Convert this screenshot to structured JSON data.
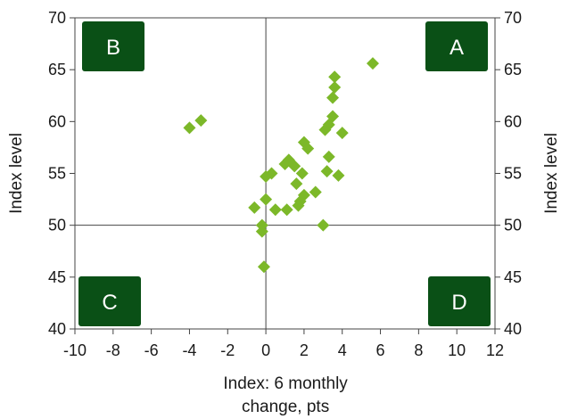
{
  "chart_data": {
    "type": "scatter",
    "title": "",
    "xlabel_lines": [
      "Index: 6 monthly",
      "change, pts"
    ],
    "ylabel_left": "Index level",
    "ylabel_right": "Index level",
    "xlim": [
      -10,
      12
    ],
    "ylim": [
      40,
      70
    ],
    "x_ticks": [
      "-10",
      "-8",
      "-6",
      "-4",
      "-2",
      "0",
      "2",
      "4",
      "6",
      "8",
      "10",
      "12"
    ],
    "y_ticks": [
      "40",
      "45",
      "50",
      "55",
      "60",
      "65",
      "70"
    ],
    "reference_lines": {
      "x": 0,
      "y": 50
    },
    "quadrants": [
      {
        "label": "B",
        "position": "top-left"
      },
      {
        "label": "A",
        "position": "top-right"
      },
      {
        "label": "C",
        "position": "bottom-left"
      },
      {
        "label": "D",
        "position": "bottom-right"
      }
    ],
    "grid": false,
    "marker": "diamond",
    "colors": {
      "marker": "#7cb829",
      "quadrant_box": "#0a5016",
      "axis": "#444444"
    },
    "points": [
      {
        "x": 5.6,
        "y": 65.6
      },
      {
        "x": 3.6,
        "y": 64.3
      },
      {
        "x": 3.6,
        "y": 63.3
      },
      {
        "x": 3.5,
        "y": 62.3
      },
      {
        "x": -3.4,
        "y": 60.1
      },
      {
        "x": -4.0,
        "y": 59.4
      },
      {
        "x": 3.5,
        "y": 60.5
      },
      {
        "x": 3.3,
        "y": 59.7
      },
      {
        "x": 3.1,
        "y": 59.2
      },
      {
        "x": 4.0,
        "y": 58.9
      },
      {
        "x": 2.0,
        "y": 58.0
      },
      {
        "x": 2.2,
        "y": 57.4
      },
      {
        "x": 3.3,
        "y": 56.6
      },
      {
        "x": 1.2,
        "y": 56.3
      },
      {
        "x": 1.0,
        "y": 55.9
      },
      {
        "x": 1.5,
        "y": 55.7
      },
      {
        "x": 1.9,
        "y": 55.0
      },
      {
        "x": 3.2,
        "y": 55.2
      },
      {
        "x": 3.8,
        "y": 54.8
      },
      {
        "x": 0.3,
        "y": 55.0
      },
      {
        "x": 0.0,
        "y": 54.7
      },
      {
        "x": 1.6,
        "y": 54.0
      },
      {
        "x": 2.6,
        "y": 53.2
      },
      {
        "x": 2.0,
        "y": 52.9
      },
      {
        "x": 1.8,
        "y": 52.3
      },
      {
        "x": 1.7,
        "y": 51.9
      },
      {
        "x": 0.0,
        "y": 52.5
      },
      {
        "x": -0.6,
        "y": 51.7
      },
      {
        "x": 0.5,
        "y": 51.5
      },
      {
        "x": 1.1,
        "y": 51.5
      },
      {
        "x": -0.2,
        "y": 50.0
      },
      {
        "x": 3.0,
        "y": 50.0
      },
      {
        "x": -0.2,
        "y": 49.4
      },
      {
        "x": -0.1,
        "y": 46.0
      }
    ]
  }
}
